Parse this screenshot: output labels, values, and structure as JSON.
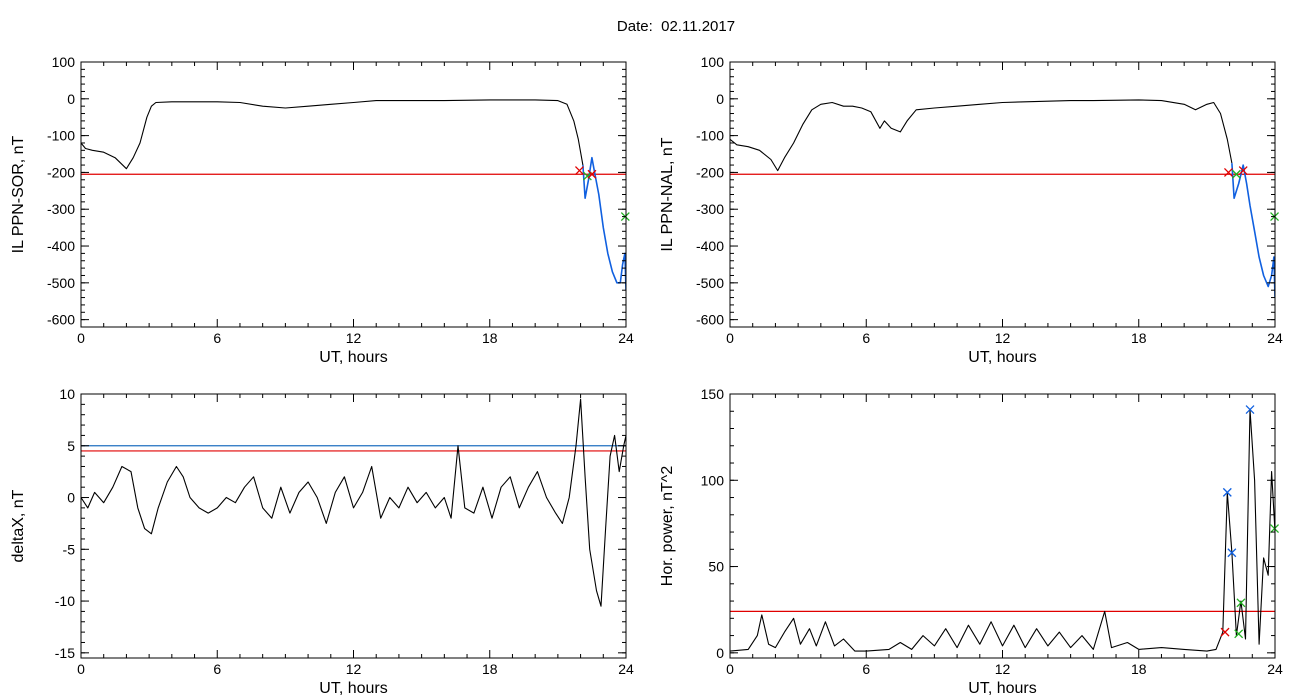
{
  "header": {
    "date_label": "Date:",
    "date_value": "02.11.2017"
  },
  "colors": {
    "trace": "#000000",
    "threshold_red": "#e00000",
    "threshold_blue": "#2070c0",
    "event_blue": "#1060e0",
    "marker_green": "#20b020",
    "marker_red": "#e00000"
  },
  "chart_data": [
    {
      "id": "il-sor",
      "type": "line",
      "ylabel": "IL PPN-SOR, nT",
      "xlabel": "UT, hours",
      "xlim": [
        0,
        24
      ],
      "ylim": [
        -620,
        100
      ],
      "xticks": [
        0,
        6,
        12,
        18,
        24
      ],
      "xtick_labels": [
        "0",
        "6",
        "12",
        "18",
        "24"
      ],
      "yticks": [
        100,
        0,
        -100,
        -200,
        -300,
        -400,
        -500,
        -600
      ],
      "ytick_labels": [
        "100",
        "0",
        "-100",
        "-200",
        "-300",
        "-400",
        "-500",
        "-600"
      ],
      "thresholds": [
        {
          "y": -205,
          "color": "red"
        }
      ],
      "series": [
        {
          "color": "black",
          "points": [
            [
              0,
              -120
            ],
            [
              0.2,
              -135
            ],
            [
              0.5,
              -140
            ],
            [
              1.0,
              -145
            ],
            [
              1.5,
              -160
            ],
            [
              2.0,
              -190
            ],
            [
              2.3,
              -160
            ],
            [
              2.6,
              -120
            ],
            [
              2.9,
              -50
            ],
            [
              3.1,
              -20
            ],
            [
              3.3,
              -10
            ],
            [
              4.0,
              -8
            ],
            [
              6.0,
              -8
            ],
            [
              7.0,
              -10
            ],
            [
              8.0,
              -20
            ],
            [
              9.0,
              -25
            ],
            [
              10.0,
              -20
            ],
            [
              11.0,
              -15
            ],
            [
              12.0,
              -10
            ],
            [
              13.0,
              -5
            ],
            [
              15.0,
              -5
            ],
            [
              16.0,
              -5
            ],
            [
              18.0,
              -3
            ],
            [
              20.0,
              -3
            ],
            [
              21.0,
              -5
            ],
            [
              21.4,
              -15
            ],
            [
              21.7,
              -60
            ],
            [
              21.9,
              -110
            ],
            [
              22.1,
              -180
            ]
          ]
        },
        {
          "color": "blue",
          "points": [
            [
              22.1,
              -180
            ],
            [
              22.2,
              -270
            ],
            [
              22.35,
              -220
            ],
            [
              22.5,
              -160
            ],
            [
              22.65,
              -210
            ],
            [
              22.8,
              -260
            ],
            [
              23.0,
              -350
            ],
            [
              23.2,
              -420
            ],
            [
              23.4,
              -470
            ],
            [
              23.6,
              -500
            ],
            [
              23.75,
              -500
            ],
            [
              23.85,
              -450
            ],
            [
              23.95,
              -420
            ],
            [
              24.0,
              -520
            ]
          ]
        }
      ],
      "markers": [
        {
          "x": 21.95,
          "y": -195,
          "color": "red"
        },
        {
          "x": 22.3,
          "y": -210,
          "color": "green"
        },
        {
          "x": 22.5,
          "y": -205,
          "color": "red"
        },
        {
          "x": 23.97,
          "y": -320,
          "color": "green"
        }
      ]
    },
    {
      "id": "il-nal",
      "type": "line",
      "ylabel": "IL PPN-NAL, nT",
      "xlabel": "UT, hours",
      "xlim": [
        0,
        24
      ],
      "ylim": [
        -620,
        100
      ],
      "xticks": [
        0,
        6,
        12,
        18,
        24
      ],
      "xtick_labels": [
        "0",
        "6",
        "12",
        "18",
        "24"
      ],
      "yticks": [
        100,
        0,
        -100,
        -200,
        -300,
        -400,
        -500,
        -600
      ],
      "ytick_labels": [
        "100",
        "0",
        "-100",
        "-200",
        "-300",
        "-400",
        "-500",
        "-600"
      ],
      "thresholds": [
        {
          "y": -205,
          "color": "red"
        }
      ],
      "series": [
        {
          "color": "black",
          "points": [
            [
              0,
              -110
            ],
            [
              0.3,
              -125
            ],
            [
              0.8,
              -130
            ],
            [
              1.3,
              -140
            ],
            [
              1.8,
              -165
            ],
            [
              2.1,
              -195
            ],
            [
              2.4,
              -160
            ],
            [
              2.8,
              -120
            ],
            [
              3.2,
              -70
            ],
            [
              3.6,
              -30
            ],
            [
              4.0,
              -15
            ],
            [
              4.5,
              -10
            ],
            [
              5.0,
              -20
            ],
            [
              5.4,
              -20
            ],
            [
              5.8,
              -25
            ],
            [
              6.2,
              -35
            ],
            [
              6.6,
              -80
            ],
            [
              6.8,
              -60
            ],
            [
              7.1,
              -80
            ],
            [
              7.5,
              -90
            ],
            [
              7.8,
              -60
            ],
            [
              8.2,
              -30
            ],
            [
              9.0,
              -25
            ],
            [
              10.0,
              -20
            ],
            [
              11.0,
              -15
            ],
            [
              12.0,
              -10
            ],
            [
              13.0,
              -8
            ],
            [
              15.0,
              -5
            ],
            [
              16.0,
              -5
            ],
            [
              18.0,
              -3
            ],
            [
              19.0,
              -5
            ],
            [
              20.0,
              -15
            ],
            [
              20.5,
              -30
            ],
            [
              21.0,
              -15
            ],
            [
              21.3,
              -10
            ],
            [
              21.6,
              -40
            ],
            [
              21.9,
              -110
            ],
            [
              22.1,
              -175
            ]
          ]
        },
        {
          "color": "blue",
          "points": [
            [
              22.1,
              -175
            ],
            [
              22.2,
              -270
            ],
            [
              22.4,
              -230
            ],
            [
              22.6,
              -180
            ],
            [
              22.75,
              -230
            ],
            [
              22.9,
              -290
            ],
            [
              23.1,
              -360
            ],
            [
              23.3,
              -430
            ],
            [
              23.5,
              -480
            ],
            [
              23.7,
              -510
            ],
            [
              23.85,
              -480
            ],
            [
              23.95,
              -430
            ],
            [
              24.0,
              -540
            ]
          ]
        }
      ],
      "markers": [
        {
          "x": 21.95,
          "y": -200,
          "color": "red"
        },
        {
          "x": 22.3,
          "y": -205,
          "color": "green"
        },
        {
          "x": 22.6,
          "y": -195,
          "color": "red"
        },
        {
          "x": 23.98,
          "y": -320,
          "color": "green"
        }
      ]
    },
    {
      "id": "delta-x",
      "type": "line",
      "ylabel": "deltaX, nT",
      "xlabel": "UT, hours",
      "xlim": [
        0,
        24
      ],
      "ylim": [
        -15.5,
        10
      ],
      "xticks": [
        0,
        6,
        12,
        18,
        24
      ],
      "xtick_labels": [
        "0",
        "6",
        "12",
        "18",
        "24"
      ],
      "yticks": [
        10,
        5,
        0,
        -5,
        -10,
        -15
      ],
      "ytick_labels": [
        "10",
        "5",
        "0",
        "-5",
        "-10",
        "-15"
      ],
      "thresholds": [
        {
          "y": 5.0,
          "color": "blue"
        },
        {
          "y": 4.5,
          "color": "red"
        }
      ],
      "series": [
        {
          "color": "black",
          "points": [
            [
              0,
              0
            ],
            [
              0.3,
              -1
            ],
            [
              0.6,
              0.5
            ],
            [
              1.0,
              -0.5
            ],
            [
              1.4,
              1
            ],
            [
              1.8,
              3
            ],
            [
              2.2,
              2.5
            ],
            [
              2.5,
              -1
            ],
            [
              2.8,
              -3
            ],
            [
              3.1,
              -3.5
            ],
            [
              3.4,
              -1
            ],
            [
              3.8,
              1.5
            ],
            [
              4.2,
              3
            ],
            [
              4.5,
              2
            ],
            [
              4.8,
              0
            ],
            [
              5.2,
              -1
            ],
            [
              5.6,
              -1.5
            ],
            [
              6.0,
              -1
            ],
            [
              6.4,
              0
            ],
            [
              6.8,
              -0.5
            ],
            [
              7.2,
              1
            ],
            [
              7.6,
              2
            ],
            [
              8.0,
              -1
            ],
            [
              8.4,
              -2
            ],
            [
              8.8,
              1
            ],
            [
              9.2,
              -1.5
            ],
            [
              9.6,
              0.5
            ],
            [
              10.0,
              1.5
            ],
            [
              10.4,
              0
            ],
            [
              10.8,
              -2.5
            ],
            [
              11.2,
              0.5
            ],
            [
              11.6,
              2
            ],
            [
              12.0,
              -1
            ],
            [
              12.4,
              0.5
            ],
            [
              12.8,
              3
            ],
            [
              13.2,
              -2
            ],
            [
              13.6,
              0
            ],
            [
              14.0,
              -1
            ],
            [
              14.4,
              1
            ],
            [
              14.8,
              -0.5
            ],
            [
              15.2,
              0.5
            ],
            [
              15.6,
              -1
            ],
            [
              16.0,
              0
            ],
            [
              16.3,
              -2
            ],
            [
              16.6,
              5
            ],
            [
              16.9,
              -1
            ],
            [
              17.3,
              -1.5
            ],
            [
              17.7,
              1
            ],
            [
              18.1,
              -2
            ],
            [
              18.5,
              1
            ],
            [
              18.9,
              2
            ],
            [
              19.3,
              -1
            ],
            [
              19.7,
              1
            ],
            [
              20.1,
              2.5
            ],
            [
              20.5,
              0
            ],
            [
              20.9,
              -1.5
            ],
            [
              21.2,
              -2.5
            ],
            [
              21.5,
              0
            ],
            [
              21.8,
              5
            ],
            [
              22.0,
              9.5
            ],
            [
              22.2,
              2
            ],
            [
              22.4,
              -5
            ],
            [
              22.7,
              -9
            ],
            [
              22.9,
              -10.5
            ],
            [
              23.1,
              -3
            ],
            [
              23.3,
              4
            ],
            [
              23.5,
              6
            ],
            [
              23.7,
              2.5
            ],
            [
              23.9,
              5
            ],
            [
              24.0,
              6
            ]
          ]
        }
      ],
      "markers": []
    },
    {
      "id": "hor-power",
      "type": "line",
      "ylabel": "Hor. power, nT^2",
      "xlabel": "UT, hours",
      "xlim": [
        0,
        24
      ],
      "ylim": [
        -3,
        150
      ],
      "xticks": [
        0,
        6,
        12,
        18,
        24
      ],
      "xtick_labels": [
        "0",
        "6",
        "12",
        "18",
        "24"
      ],
      "yticks": [
        150,
        100,
        50,
        0
      ],
      "ytick_labels": [
        "150",
        "100",
        "50",
        "0"
      ],
      "thresholds": [
        {
          "y": 24,
          "color": "red"
        }
      ],
      "series": [
        {
          "color": "black",
          "points": [
            [
              0,
              1
            ],
            [
              0.8,
              2
            ],
            [
              1.2,
              10
            ],
            [
              1.4,
              22
            ],
            [
              1.7,
              5
            ],
            [
              2.0,
              3
            ],
            [
              2.4,
              12
            ],
            [
              2.8,
              20
            ],
            [
              3.1,
              5
            ],
            [
              3.5,
              14
            ],
            [
              3.8,
              4
            ],
            [
              4.2,
              18
            ],
            [
              4.6,
              4
            ],
            [
              5.0,
              8
            ],
            [
              5.5,
              1
            ],
            [
              6.0,
              1
            ],
            [
              7.0,
              2
            ],
            [
              7.5,
              6
            ],
            [
              8.0,
              2
            ],
            [
              8.5,
              10
            ],
            [
              9.0,
              4
            ],
            [
              9.5,
              14
            ],
            [
              10.0,
              3
            ],
            [
              10.5,
              16
            ],
            [
              11.0,
              5
            ],
            [
              11.5,
              18
            ],
            [
              12.0,
              4
            ],
            [
              12.5,
              16
            ],
            [
              13.0,
              3
            ],
            [
              13.5,
              14
            ],
            [
              14.0,
              4
            ],
            [
              14.5,
              12
            ],
            [
              15.0,
              3
            ],
            [
              15.5,
              10
            ],
            [
              16.0,
              2
            ],
            [
              16.5,
              24
            ],
            [
              16.8,
              3
            ],
            [
              17.5,
              6
            ],
            [
              18.0,
              2
            ],
            [
              19.0,
              3
            ],
            [
              20.0,
              2
            ],
            [
              21.0,
              1
            ],
            [
              21.4,
              2
            ],
            [
              21.7,
              12
            ],
            [
              21.9,
              93
            ],
            [
              22.1,
              58
            ],
            [
              22.3,
              10
            ],
            [
              22.5,
              30
            ],
            [
              22.7,
              8
            ],
            [
              22.9,
              141
            ],
            [
              23.1,
              100
            ],
            [
              23.3,
              5
            ],
            [
              23.5,
              55
            ],
            [
              23.7,
              45
            ],
            [
              23.85,
              105
            ],
            [
              24.0,
              70
            ]
          ]
        }
      ],
      "markers": [
        {
          "x": 21.9,
          "y": 93,
          "color": "blue"
        },
        {
          "x": 22.1,
          "y": 58,
          "color": "blue"
        },
        {
          "x": 22.9,
          "y": 141,
          "color": "blue"
        },
        {
          "x": 21.8,
          "y": 12,
          "color": "red"
        },
        {
          "x": 22.4,
          "y": 11,
          "color": "green"
        },
        {
          "x": 22.5,
          "y": 29,
          "color": "green"
        },
        {
          "x": 23.98,
          "y": 72,
          "color": "green"
        }
      ]
    }
  ]
}
